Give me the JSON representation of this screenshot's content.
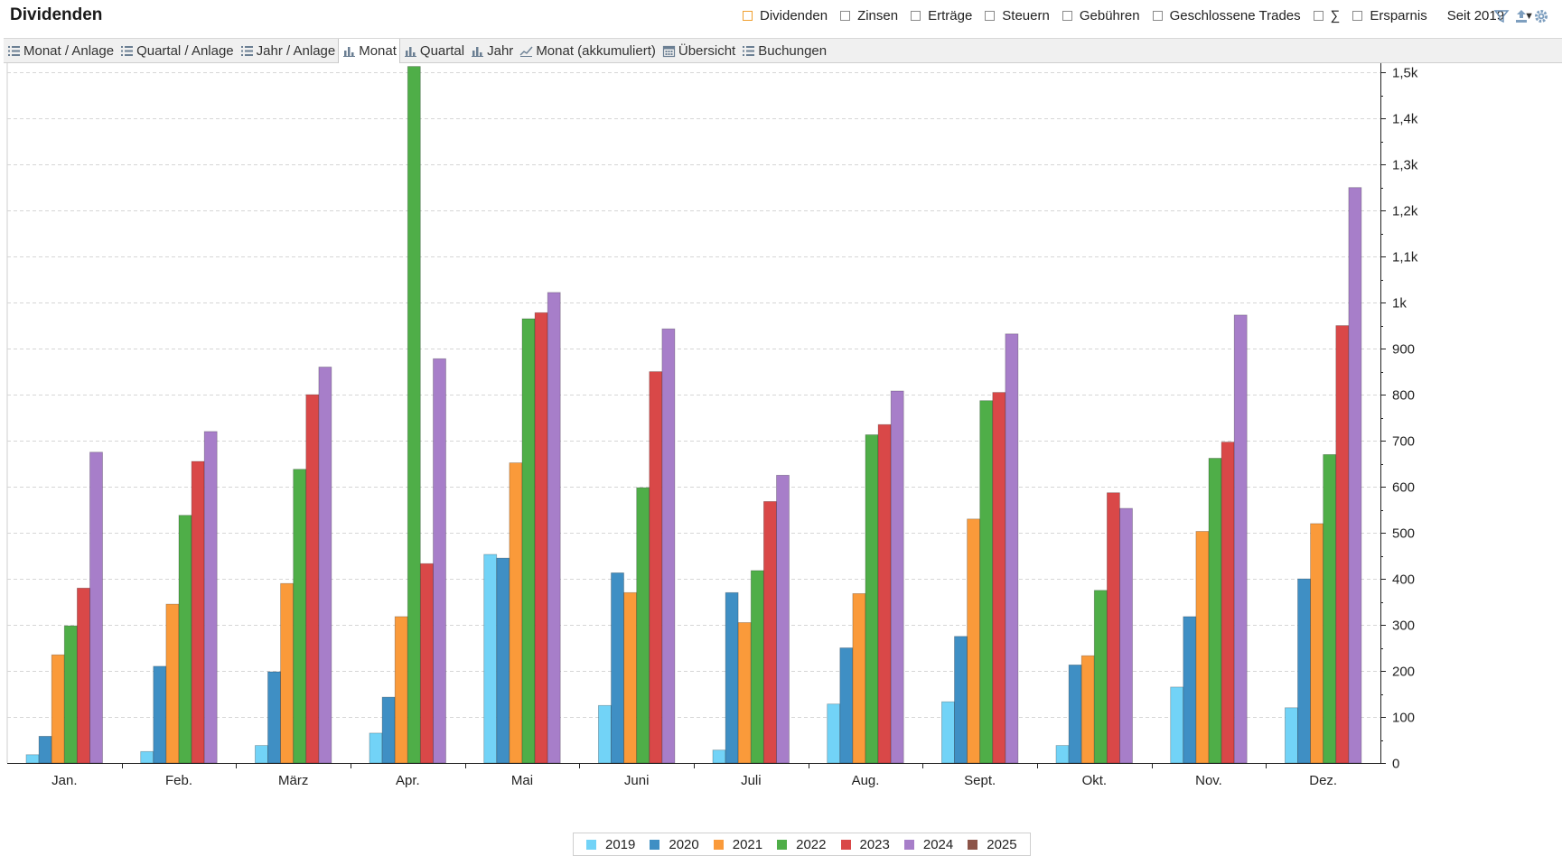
{
  "title": "Dividenden",
  "filters": [
    {
      "label": "Dividenden",
      "checked": true
    },
    {
      "label": "Zinsen",
      "checked": false
    },
    {
      "label": "Erträge",
      "checked": false
    },
    {
      "label": "Steuern",
      "checked": false
    },
    {
      "label": "Gebühren",
      "checked": false
    },
    {
      "label": "Geschlossene Trades",
      "checked": false
    },
    {
      "label": "∑",
      "checked": false
    },
    {
      "label": "Ersparnis",
      "checked": false
    }
  ],
  "period": {
    "selected": "Seit 2019"
  },
  "toolbar_icons": [
    "filter-icon",
    "export-icon",
    "settings-icon"
  ],
  "tabs": [
    {
      "label": "Monat / Anlage",
      "icon": "list-icon",
      "active": false
    },
    {
      "label": "Quartal / Anlage",
      "icon": "list-icon",
      "active": false
    },
    {
      "label": "Jahr / Anlage",
      "icon": "list-icon",
      "active": false
    },
    {
      "label": "Monat",
      "icon": "bar-chart-icon",
      "active": true
    },
    {
      "label": "Quartal",
      "icon": "bar-chart-icon",
      "active": false
    },
    {
      "label": "Jahr",
      "icon": "bar-chart-icon",
      "active": false
    },
    {
      "label": "Monat (akkumuliert)",
      "icon": "line-chart-icon",
      "active": false
    },
    {
      "label": "Übersicht",
      "icon": "calendar-icon",
      "active": false
    },
    {
      "label": "Buchungen",
      "icon": "list-icon",
      "active": false
    }
  ],
  "chart_data": {
    "type": "bar",
    "title": "",
    "xlabel": "",
    "ylabel": "",
    "ylim": [
      0,
      1520
    ],
    "y_axis_side": "right",
    "grid": true,
    "legend_position": "bottom",
    "categories": [
      "Jan.",
      "Feb.",
      "März",
      "Apr.",
      "Mai",
      "Juni",
      "Juli",
      "Aug.",
      "Sept.",
      "Okt.",
      "Nov.",
      "Dez."
    ],
    "y_ticks": [
      {
        "value": 0,
        "label": "0"
      },
      {
        "value": 100,
        "label": "100"
      },
      {
        "value": 200,
        "label": "200"
      },
      {
        "value": 300,
        "label": "300"
      },
      {
        "value": 400,
        "label": "400"
      },
      {
        "value": 500,
        "label": "500"
      },
      {
        "value": 600,
        "label": "600"
      },
      {
        "value": 700,
        "label": "700"
      },
      {
        "value": 800,
        "label": "800"
      },
      {
        "value": 900,
        "label": "900"
      },
      {
        "value": 1000,
        "label": "1k"
      },
      {
        "value": 1100,
        "label": "1,1k"
      },
      {
        "value": 1200,
        "label": "1,2k"
      },
      {
        "value": 1300,
        "label": "1,3k"
      },
      {
        "value": 1400,
        "label": "1,4k"
      },
      {
        "value": 1500,
        "label": "1,5k"
      }
    ],
    "series": [
      {
        "name": "2019",
        "color": "#72d3f7",
        "values": [
          18,
          25,
          38,
          65,
          453,
          125,
          28,
          128,
          133,
          38,
          165,
          120
        ]
      },
      {
        "name": "2020",
        "color": "#3f8fc4",
        "values": [
          58,
          210,
          198,
          143,
          445,
          413,
          370,
          250,
          275,
          213,
          318,
          400
        ]
      },
      {
        "name": "2021",
        "color": "#fa9a3a",
        "values": [
          235,
          345,
          390,
          318,
          652,
          370,
          305,
          368,
          530,
          233,
          503,
          520
        ]
      },
      {
        "name": "2022",
        "color": "#4fae48",
        "values": [
          298,
          538,
          638,
          1513,
          965,
          598,
          418,
          713,
          787,
          375,
          662,
          670
        ]
      },
      {
        "name": "2023",
        "color": "#d94848",
        "values": [
          380,
          655,
          800,
          433,
          978,
          850,
          568,
          735,
          805,
          587,
          697,
          950
        ]
      },
      {
        "name": "2024",
        "color": "#a77ec9",
        "values": [
          675,
          720,
          860,
          878,
          1022,
          943,
          625,
          808,
          932,
          553,
          973,
          1250
        ]
      },
      {
        "name": "2025",
        "color": "#8c5448",
        "values": [
          0,
          0,
          0,
          0,
          0,
          0,
          0,
          0,
          0,
          0,
          0,
          0
        ]
      }
    ]
  }
}
